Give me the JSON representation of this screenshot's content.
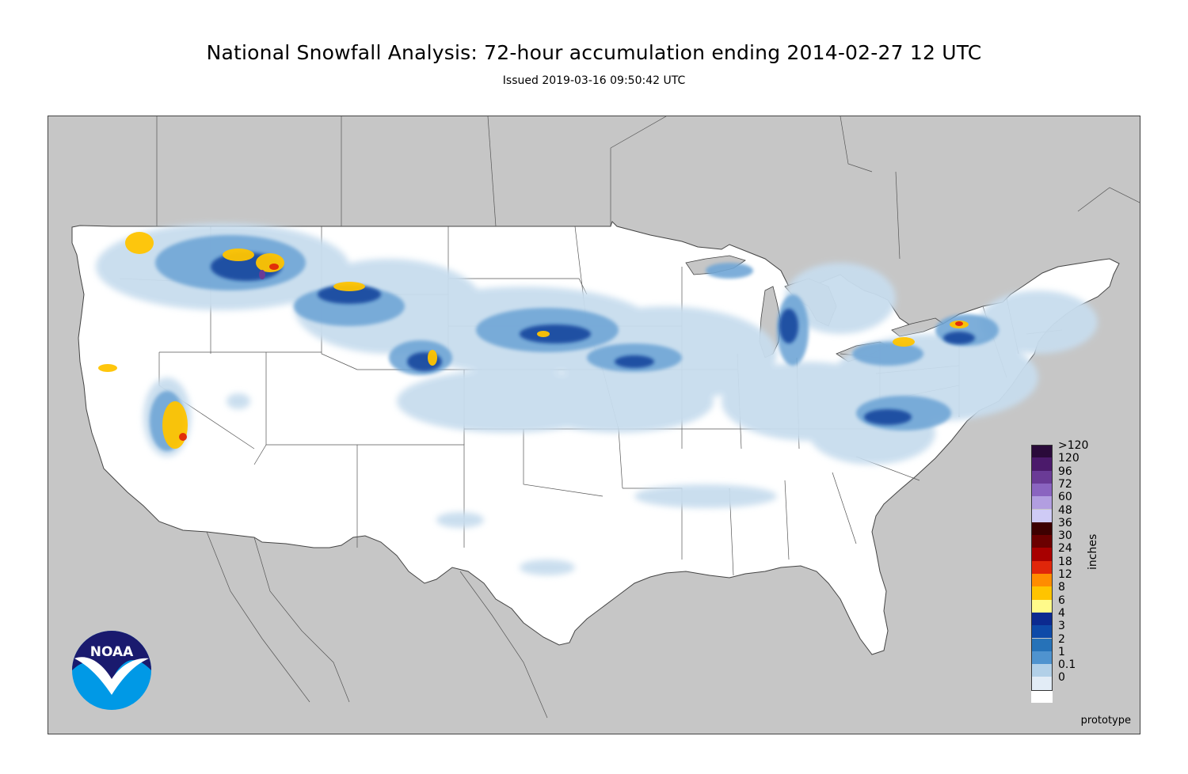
{
  "title": "National Snowfall Analysis: 72-hour accumulation ending 2014-02-27 12 UTC",
  "subtitle": "Issued 2019-03-16 09:50:42 UTC",
  "watermark": "prototype",
  "logo_text": "NOAA",
  "legend": {
    "units_label": "inches",
    "entries": [
      {
        "label": ">120",
        "color": "#2a0a3a"
      },
      {
        "label": "120",
        "color": "#4b1a6b"
      },
      {
        "label": "96",
        "color": "#6a3b96"
      },
      {
        "label": "72",
        "color": "#8a64c0"
      },
      {
        "label": "60",
        "color": "#b29ee0"
      },
      {
        "label": "48",
        "color": "#cfcbf6"
      },
      {
        "label": "36",
        "color": "#3d0000"
      },
      {
        "label": "30",
        "color": "#6b0000"
      },
      {
        "label": "24",
        "color": "#a80000"
      },
      {
        "label": "18",
        "color": "#e0260a"
      },
      {
        "label": "12",
        "color": "#ff8c00"
      },
      {
        "label": "8",
        "color": "#ffc400"
      },
      {
        "label": "6",
        "color": "#fffa8a"
      },
      {
        "label": "4",
        "color": "#0c2a90"
      },
      {
        "label": "3",
        "color": "#0e4aa8"
      },
      {
        "label": "2",
        "color": "#2672b8"
      },
      {
        "label": "1",
        "color": "#4f93cf"
      },
      {
        "label": "0.1",
        "color": "#b2d0e8"
      },
      {
        "label": "0",
        "color": "#e2ecf6"
      }
    ],
    "zero_color": "#ffffff"
  },
  "map_colors": {
    "background": "#c6c6c6",
    "land": "#ffffff",
    "boundary": "#444444"
  }
}
